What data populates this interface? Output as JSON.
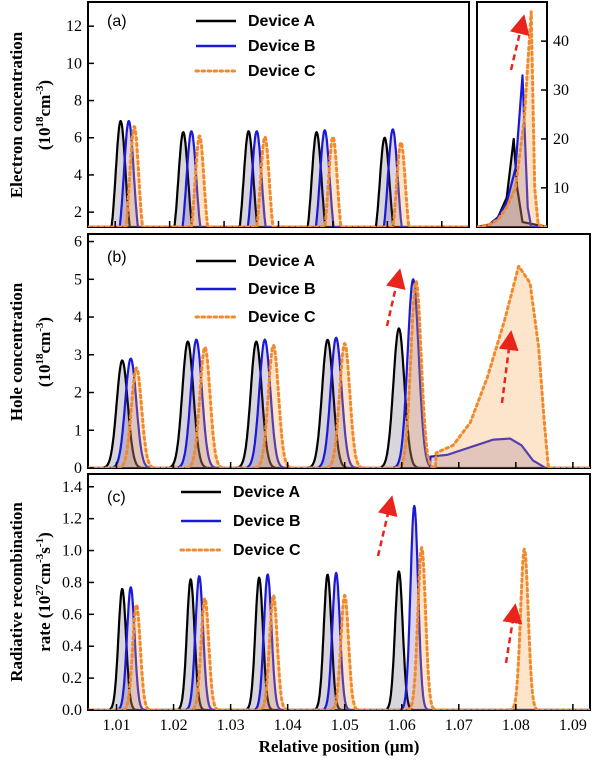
{
  "figure": {
    "xlabel": "Relative position (μm)",
    "x_ticks": [
      "1.01",
      "1.02",
      "1.03",
      "1.04",
      "1.05",
      "1.06",
      "1.07",
      "1.08",
      "1.09"
    ]
  },
  "colors": {
    "device_a": "#000000",
    "device_b": "#1a1ad6",
    "device_c": "#f08a2c",
    "arrow": "#e8241c"
  },
  "chart_data": [
    {
      "type": "line",
      "panel": "(a)",
      "title": "Electron concentration",
      "ylabel_line1": "Electron concentration",
      "ylabel_line2_prefix": "(10",
      "ylabel_line2_exp1": "18",
      "ylabel_line2_mid": "cm",
      "ylabel_line2_exp2": "-3",
      "ylabel_line2_suffix": ")",
      "xlim": [
        1.005,
        1.075
      ],
      "ylim": [
        1.2,
        13.3
      ],
      "y_ticks": [
        "2",
        "4",
        "6",
        "8",
        "10",
        "12"
      ],
      "legend": [
        "Device A",
        "Device B",
        "Device C"
      ],
      "series": [
        {
          "name": "Device A",
          "peaks": [
            {
              "x": 1.011,
              "y": 6.9
            },
            {
              "x": 1.0225,
              "y": 6.3
            },
            {
              "x": 1.0345,
              "y": 6.35
            },
            {
              "x": 1.047,
              "y": 6.3
            },
            {
              "x": 1.0595,
              "y": 6.0
            }
          ],
          "width": 0.0012
        },
        {
          "name": "Device B",
          "peaks": [
            {
              "x": 1.0125,
              "y": 6.9
            },
            {
              "x": 1.024,
              "y": 6.35
            },
            {
              "x": 1.036,
              "y": 6.35
            },
            {
              "x": 1.0485,
              "y": 6.4
            },
            {
              "x": 1.061,
              "y": 6.45
            }
          ],
          "width": 0.0012
        },
        {
          "name": "Device C",
          "peaks": [
            {
              "x": 1.0135,
              "y": 6.6
            },
            {
              "x": 1.0255,
              "y": 6.1
            },
            {
              "x": 1.0375,
              "y": 6.05
            },
            {
              "x": 1.05,
              "y": 6.05
            },
            {
              "x": 1.0625,
              "y": 5.75
            }
          ],
          "width": 0.0011
        }
      ]
    },
    {
      "type": "line",
      "panel": "(a) inset",
      "xlim": [
        1.07,
        1.09
      ],
      "ylim": [
        2,
        48
      ],
      "y_ticks": [
        "10",
        "20",
        "30",
        "40"
      ],
      "series": [
        {
          "name": "Device A",
          "points": [
            [
              1.0735,
              2.5
            ],
            [
              1.076,
              4
            ],
            [
              1.0785,
              8
            ],
            [
              1.0805,
              20
            ],
            [
              1.0815,
              10
            ],
            [
              1.083,
              3
            ]
          ]
        },
        {
          "name": "Device B",
          "points": [
            [
              1.0735,
              2.5
            ],
            [
              1.076,
              4
            ],
            [
              1.0785,
              7
            ],
            [
              1.081,
              14
            ],
            [
              1.083,
              33
            ],
            [
              1.0845,
              6
            ],
            [
              1.0855,
              2
            ]
          ]
        },
        {
          "name": "Device C",
          "points": [
            [
              1.0735,
              2.5
            ],
            [
              1.076,
              3.5
            ],
            [
              1.0785,
              6
            ],
            [
              1.081,
              10
            ],
            [
              1.0835,
              24
            ],
            [
              1.0855,
              46
            ],
            [
              1.0865,
              10
            ],
            [
              1.0875,
              2.5
            ]
          ]
        }
      ]
    },
    {
      "type": "area",
      "panel": "(b)",
      "title": "Hole concentration",
      "ylabel_line1": "Hole concentration",
      "ylabel_line2_prefix": "(10",
      "ylabel_line2_exp1": "18",
      "ylabel_line2_mid": "cm",
      "ylabel_line2_exp2": "-3",
      "ylabel_line2_suffix": ")",
      "xlim": [
        1.005,
        1.093
      ],
      "ylim": [
        0,
        6.2
      ],
      "y_ticks": [
        "0",
        "1",
        "2",
        "3",
        "4",
        "5",
        "6"
      ],
      "legend": [
        "Device A",
        "Device B",
        "Device C"
      ],
      "series": [
        {
          "name": "Device A",
          "peaks": [
            {
              "x": 1.011,
              "y": 2.85
            },
            {
              "x": 1.0225,
              "y": 3.35
            },
            {
              "x": 1.0345,
              "y": 3.35
            },
            {
              "x": 1.047,
              "y": 3.4
            },
            {
              "x": 1.0595,
              "y": 3.7
            }
          ],
          "width": 0.0013
        },
        {
          "name": "Device B",
          "peaks": [
            {
              "x": 1.0125,
              "y": 2.9
            },
            {
              "x": 1.024,
              "y": 3.4
            },
            {
              "x": 1.036,
              "y": 3.4
            },
            {
              "x": 1.0485,
              "y": 3.45
            },
            {
              "x": 1.062,
              "y": 5.0
            }
          ],
          "width": 0.0013,
          "tail": [
            [
              1.065,
              0.3
            ],
            [
              1.068,
              0.35
            ],
            [
              1.072,
              0.55
            ],
            [
              1.076,
              0.75
            ],
            [
              1.079,
              0.78
            ],
            [
              1.081,
              0.6
            ],
            [
              1.083,
              0.2
            ],
            [
              1.085,
              0.02
            ]
          ]
        },
        {
          "name": "Device C",
          "peaks": [
            {
              "x": 1.0135,
              "y": 2.65
            },
            {
              "x": 1.0255,
              "y": 3.2
            },
            {
              "x": 1.0375,
              "y": 3.25
            },
            {
              "x": 1.05,
              "y": 3.3
            },
            {
              "x": 1.0625,
              "y": 4.95
            }
          ],
          "width": 0.0012,
          "tail": [
            [
              1.066,
              0.4
            ],
            [
              1.069,
              0.6
            ],
            [
              1.072,
              1.2
            ],
            [
              1.075,
              2.4
            ],
            [
              1.078,
              3.9
            ],
            [
              1.0805,
              5.35
            ],
            [
              1.0825,
              4.9
            ],
            [
              1.084,
              3.2
            ],
            [
              1.085,
              1.2
            ],
            [
              1.0857,
              0.02
            ]
          ]
        }
      ]
    },
    {
      "type": "line",
      "panel": "(c)",
      "title": "Radiative recombination rate",
      "ylabel_line1": "Radiative recombination",
      "ylabel_line2_prefix": "rate (10",
      "ylabel_line2_exp1": "27",
      "ylabel_line2_mid": "cm",
      "ylabel_line2_exp2": "-3",
      "ylabel_line2_mid2": "s",
      "ylabel_line2_exp3": "-1",
      "ylabel_line2_suffix": ")",
      "xlim": [
        1.005,
        1.093
      ],
      "ylim": [
        0,
        1.48
      ],
      "y_ticks": [
        "0.0",
        "0.2",
        "0.4",
        "0.6",
        "0.8",
        "1.0",
        "1.2",
        "1.4"
      ],
      "legend": [
        "Device A",
        "Device B",
        "Device C"
      ],
      "series": [
        {
          "name": "Device A",
          "peaks": [
            {
              "x": 1.011,
              "y": 0.76
            },
            {
              "x": 1.023,
              "y": 0.82
            },
            {
              "x": 1.035,
              "y": 0.83
            },
            {
              "x": 1.047,
              "y": 0.85
            },
            {
              "x": 1.0595,
              "y": 0.87
            }
          ],
          "width": 0.0009
        },
        {
          "name": "Device B",
          "peaks": [
            {
              "x": 1.0125,
              "y": 0.77
            },
            {
              "x": 1.0245,
              "y": 0.84
            },
            {
              "x": 1.0365,
              "y": 0.85
            },
            {
              "x": 1.0485,
              "y": 0.86
            },
            {
              "x": 1.0622,
              "y": 1.28
            }
          ],
          "width": 0.0009
        },
        {
          "name": "Device C",
          "peaks": [
            {
              "x": 1.0135,
              "y": 0.66
            },
            {
              "x": 1.0255,
              "y": 0.7
            },
            {
              "x": 1.0375,
              "y": 0.72
            },
            {
              "x": 1.05,
              "y": 0.72
            },
            {
              "x": 1.0635,
              "y": 1.02
            },
            {
              "x": 1.0815,
              "y": 1.01
            }
          ],
          "width": 0.0009
        }
      ]
    }
  ]
}
